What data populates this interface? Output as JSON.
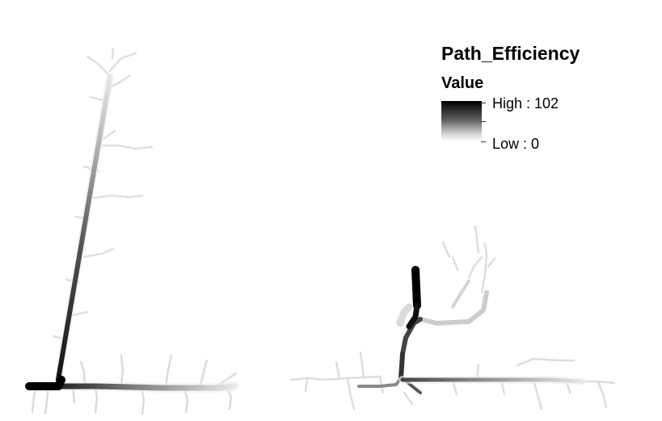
{
  "legend": {
    "title": "Path_Efficiency",
    "subtitle": "Value",
    "high_label": "High : 102",
    "low_label": "Low : 0",
    "high_value": 102,
    "low_value": 0,
    "color_ramp": [
      "#000000",
      "#ffffff"
    ]
  }
}
